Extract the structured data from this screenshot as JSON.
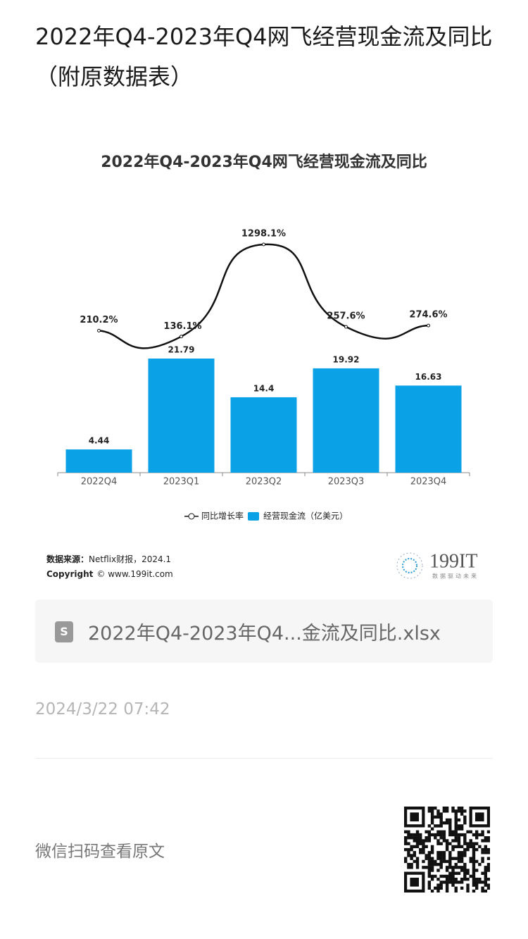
{
  "article": {
    "title": "2022年Q4-2023年Q4网飞经营现金流及同比（附原数据表）"
  },
  "chart_data": {
    "type": "combo",
    "title": "2022年Q4-2023年Q4网飞经营现金流及同比",
    "categories": [
      "2022Q4",
      "2023Q1",
      "2023Q2",
      "2023Q3",
      "2023Q4"
    ],
    "series": [
      {
        "name": "同比增长率",
        "type": "line",
        "color": "#111111",
        "values": [
          210.2,
          136.1,
          1298.1,
          257.6,
          274.6
        ],
        "value_labels": [
          "210.2%",
          "136.1%",
          "1298.1%",
          "257.6%",
          "274.6%"
        ]
      },
      {
        "name": "经营现金流（亿美元）",
        "type": "bar",
        "color": "#0ba1e6",
        "values": [
          4.44,
          21.79,
          14.4,
          19.92,
          16.63
        ]
      }
    ]
  },
  "source": {
    "label": "数据来源：",
    "text": "Netflix财报，2024.1",
    "copyright_label": "Copyright",
    "copyright_text": "© www.199it.com"
  },
  "logo": {
    "name": "199IT",
    "slogan": "数据驱动未来"
  },
  "attachment": {
    "file_name": "2022年Q4-2023年Q4...金流及同比.xlsx"
  },
  "date": "2024/3/22 07:42",
  "footer": {
    "text": "微信扫码查看原文"
  }
}
